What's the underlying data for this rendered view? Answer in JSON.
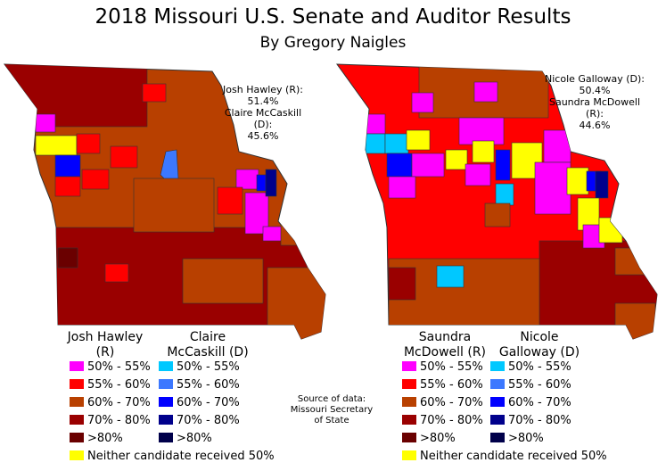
{
  "title": "2018 Missouri U.S. Senate and Auditor Results",
  "subtitle": "By Gregory Naigles",
  "source": [
    "Source of data:",
    "Missouri Secretary",
    "of State"
  ],
  "left_map": {
    "result_lines": [
      "Josh Hawley (R):",
      "51.4%",
      "Claire McCaskill (D):",
      "45.6%"
    ],
    "rep_header": [
      "Josh Hawley",
      "(R)"
    ],
    "dem_header": [
      "Claire",
      "McCaskill (D)"
    ]
  },
  "right_map": {
    "result_lines": [
      "Nicole Galloway (D):",
      "50.4%",
      "Saundra McDowell (R):",
      "44.6%"
    ],
    "rep_header": [
      "Saundra",
      "McDowell (R)"
    ],
    "dem_header": [
      "Nicole",
      "Galloway (D)"
    ]
  },
  "legend": {
    "rep_labels": [
      "50% - 55%",
      "55% - 60%",
      "60% - 70%",
      "70% - 80%",
      ">80%"
    ],
    "dem_labels": [
      "50% - 55%",
      "55% - 60%",
      "60% - 70%",
      "70% - 80%",
      ">80%"
    ],
    "rep_colors": [
      "#ff00ff",
      "#ff0000",
      "#b84000",
      "#9a0000",
      "#6a0000"
    ],
    "dem_colors": [
      "#00c8ff",
      "#3c78ff",
      "#0000ff",
      "#00008c",
      "#00004a"
    ],
    "neither_label": "Neither candidate received 50%",
    "neither_color": "#ffff00"
  }
}
